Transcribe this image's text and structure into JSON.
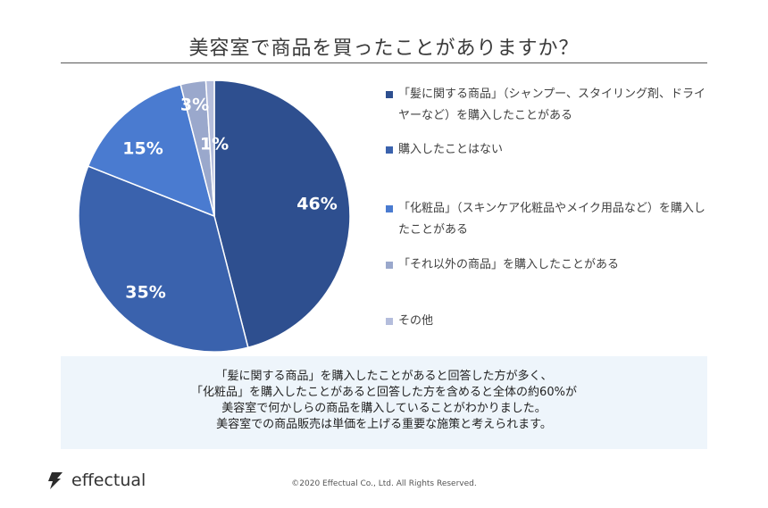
{
  "title": "美容室で商品を買ったことがありますか？",
  "chart_data": {
    "type": "pie",
    "slices": [
      {
        "label": "「髪に関する商品」（シャンプー、スタイリング剤、ドライヤーなど）を購入したことがある",
        "value": 46,
        "display": "46%",
        "color": "#2e4f8f"
      },
      {
        "label": "購入したことはない",
        "value": 35,
        "display": "35%",
        "color": "#3a62ad"
      },
      {
        "label": "「化粧品」（スキンケア化粧品やメイク用品など）を購入したことがある",
        "value": 15,
        "display": "15%",
        "color": "#4a7bd0"
      },
      {
        "label": "「それ以外の商品」を購入したことがある",
        "value": 3,
        "display": "3%",
        "color": "#9aa8cc"
      },
      {
        "label": "その他",
        "value": 1,
        "display": "1%",
        "color": "#b4bddc"
      }
    ],
    "legend_position": "right"
  },
  "note": {
    "lines": [
      "「髪に関する商品」を購入したことがあると回答した方が多く、",
      "「化粧品」を購入したことがあると回答した方を含めると全体の約60%が",
      "美容室で何かしらの商品を購入していることがわかりました。",
      "美容室での商品販売は単価を上げる重要な施策と考えられます。"
    ]
  },
  "footer": {
    "brand": "effectual",
    "copyright": "©2020 Effectual Co., Ltd. All Rights Reserved."
  }
}
